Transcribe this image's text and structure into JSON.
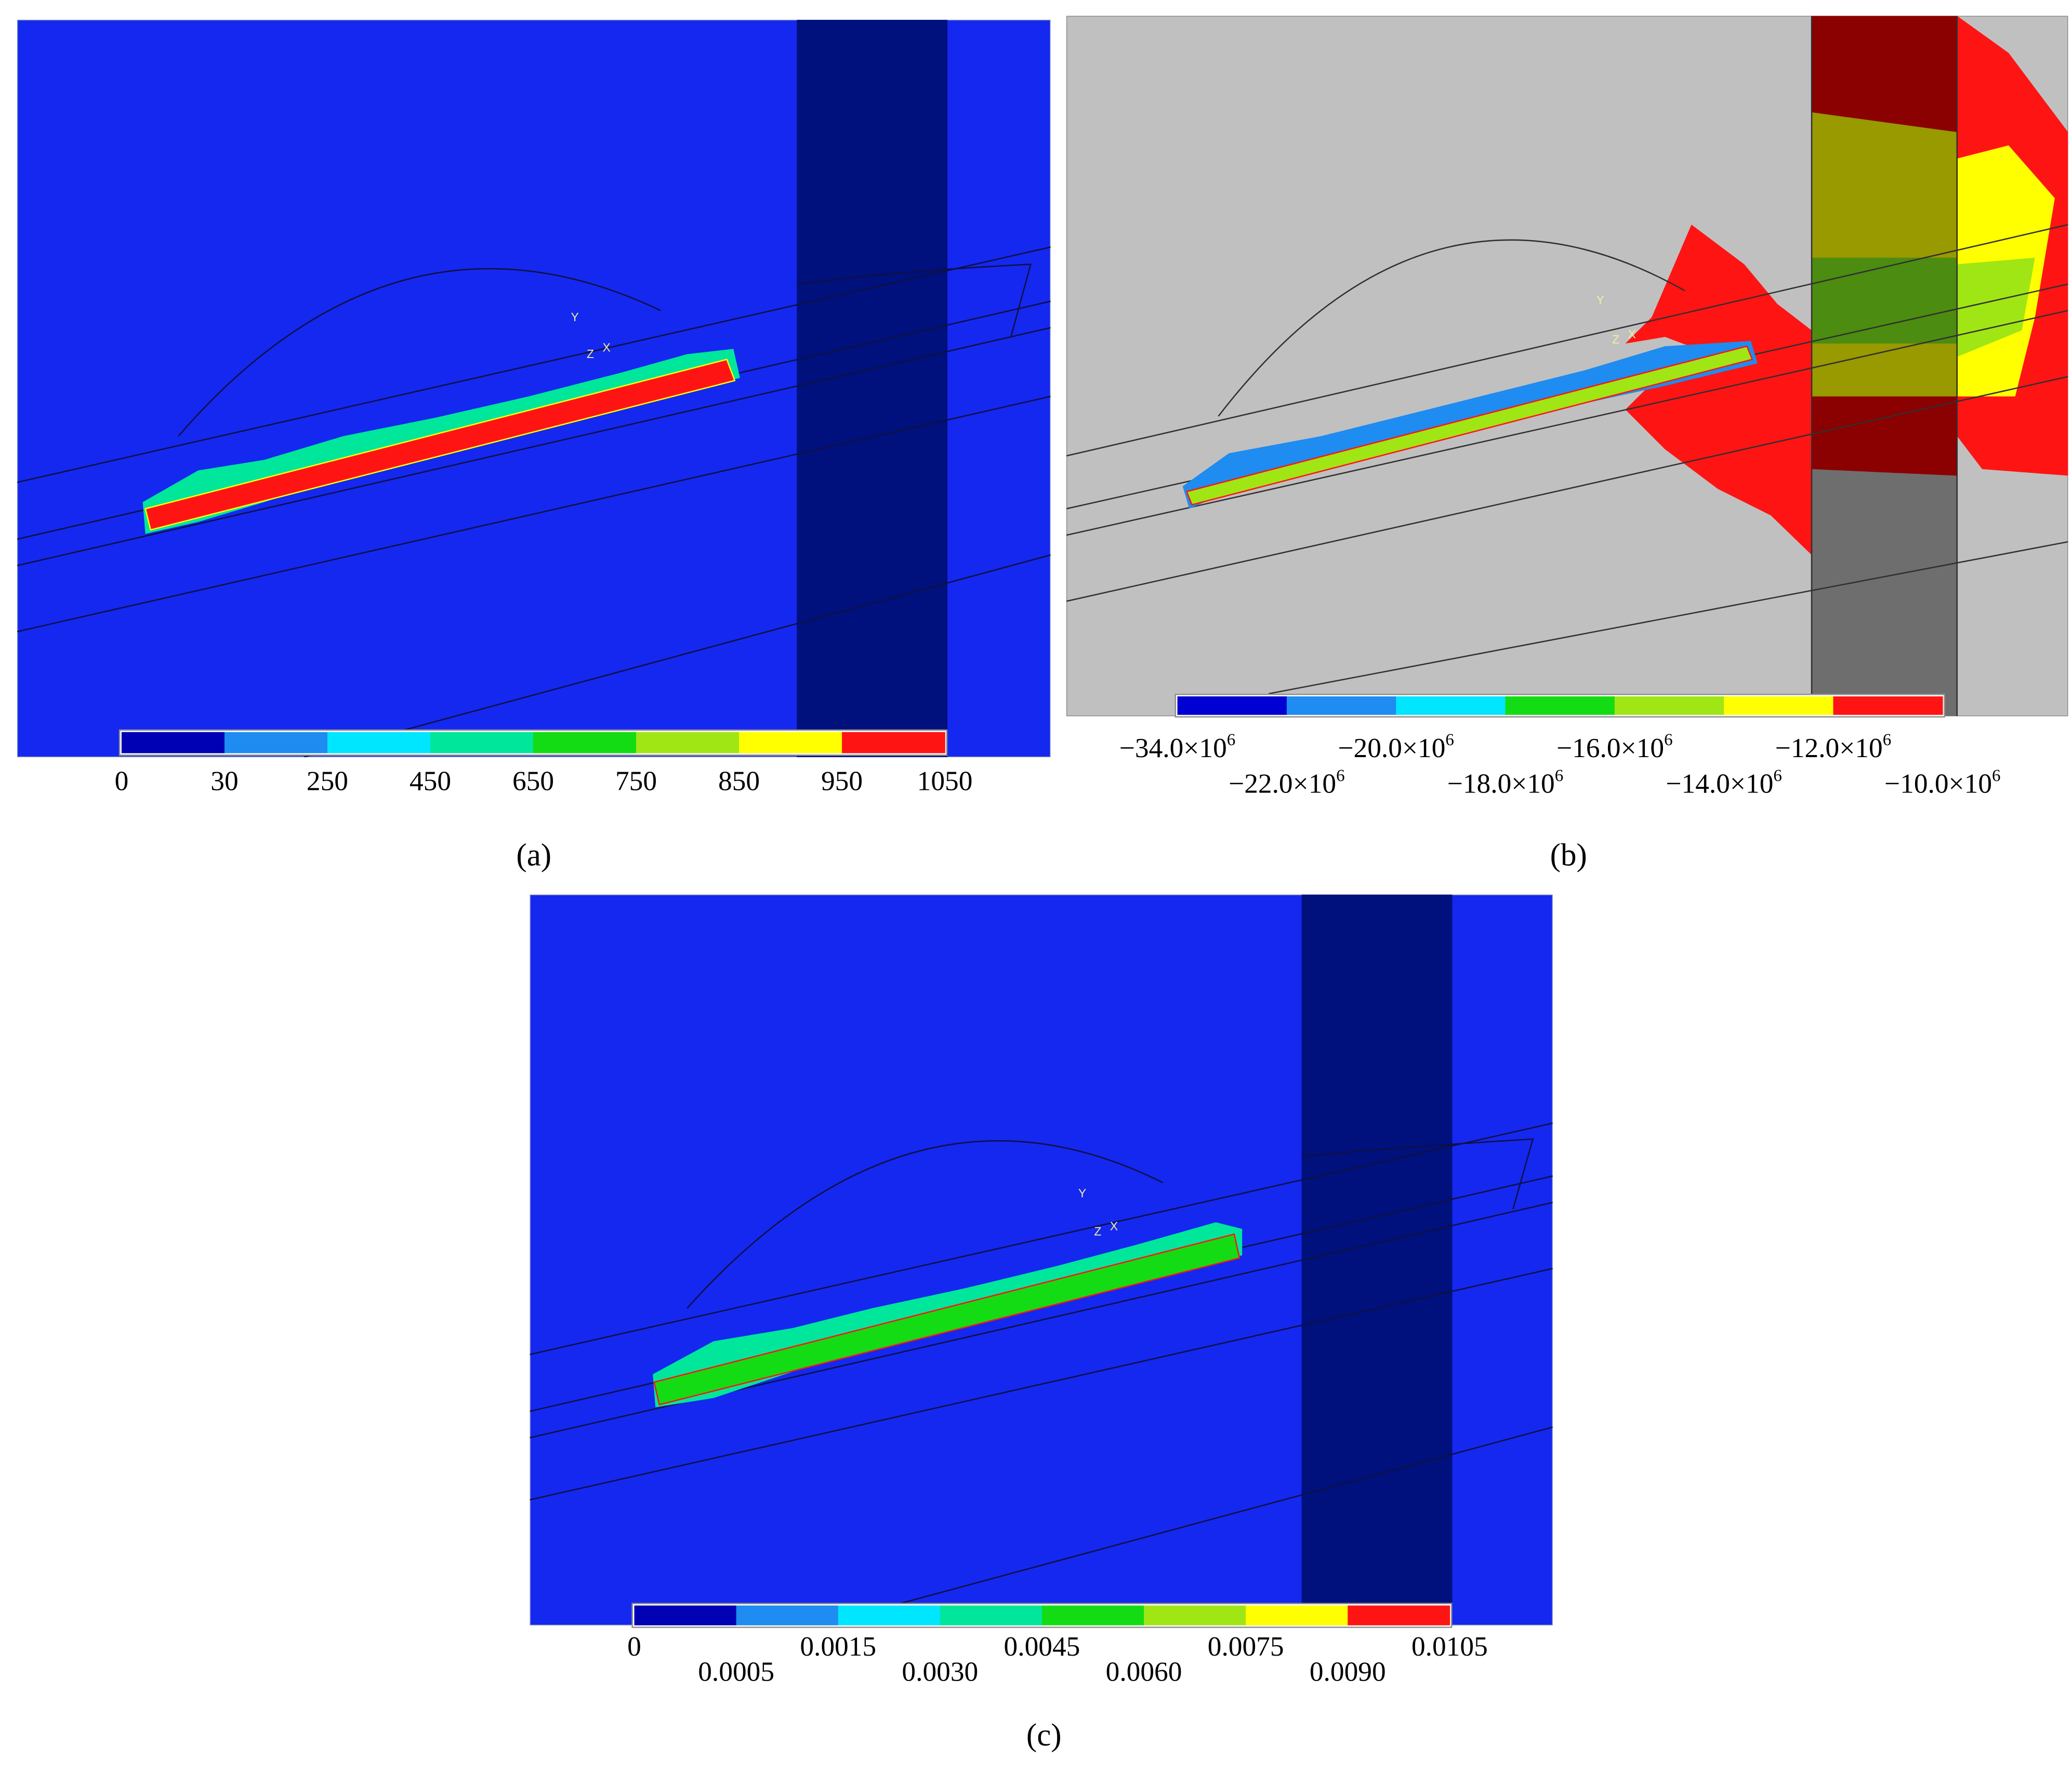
{
  "panels": [
    {
      "label": "(a)",
      "triad": [
        "Y",
        "Z",
        "X"
      ],
      "colorbar": {
        "colors": [
          "#0000b4",
          "#1e8cf0",
          "#00e6ff",
          "#00e69a",
          "#14dc14",
          "#a0e614",
          "#ffff00",
          "#ff1414"
        ],
        "labels": [
          "0",
          "30",
          "250",
          "450",
          "650",
          "750",
          "850",
          "950",
          "1050"
        ]
      }
    },
    {
      "label": "(b)",
      "triad": [
        "Y",
        "Z",
        "X"
      ],
      "colorbar": {
        "colors": [
          "#0000d2",
          "#1e8cf0",
          "#00e6ff",
          "#14dc14",
          "#a0e614",
          "#ffff00",
          "#ff1414"
        ],
        "labels": [
          {
            "mantissa": "−34.0×10",
            "exponent": "6"
          },
          {
            "mantissa": "−22.0×10",
            "exponent": "6"
          },
          {
            "mantissa": "−20.0×10",
            "exponent": "6"
          },
          {
            "mantissa": "−18.0×10",
            "exponent": "6"
          },
          {
            "mantissa": "−16.0×10",
            "exponent": "6"
          },
          {
            "mantissa": "−14.0×10",
            "exponent": "6"
          },
          {
            "mantissa": "−12.0×10",
            "exponent": "6"
          },
          {
            "mantissa": "−10.0×10",
            "exponent": "6"
          }
        ]
      }
    },
    {
      "label": "(c)",
      "triad": [
        "Y",
        "Z",
        "X"
      ],
      "colorbar": {
        "colors": [
          "#0000b4",
          "#1e8cf0",
          "#00e6ff",
          "#00e69a",
          "#14dc14",
          "#a0e614",
          "#ffff00",
          "#ff1414"
        ],
        "labels": [
          "0",
          "0.0005",
          "0.0015",
          "0.0030",
          "0.0045",
          "0.0060",
          "0.0075",
          "0.0090",
          "0.0105"
        ]
      }
    }
  ]
}
